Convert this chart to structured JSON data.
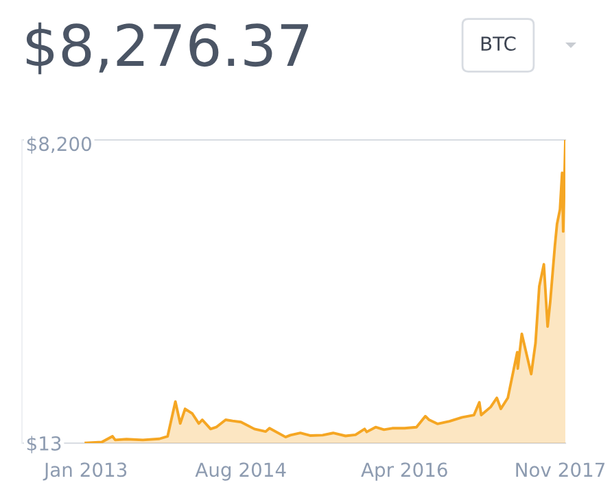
{
  "chart_data": {
    "type": "area",
    "title": "$8,276.37",
    "annotations": [
      "BTC"
    ],
    "x": [
      "2013-01-01",
      "2013-03-01",
      "2013-04-10",
      "2013-04-20",
      "2013-06-01",
      "2013-08-01",
      "2013-10-01",
      "2013-11-01",
      "2013-11-30",
      "2013-12-18",
      "2014-01-05",
      "2014-02-01",
      "2014-02-25",
      "2014-03-10",
      "2014-04-10",
      "2014-05-01",
      "2014-06-05",
      "2014-07-01",
      "2014-08-01",
      "2014-09-20",
      "2014-11-01",
      "2014-11-15",
      "2015-01-14",
      "2015-02-01",
      "2015-03-10",
      "2015-04-15",
      "2015-06-01",
      "2015-07-10",
      "2015-08-25",
      "2015-10-01",
      "2015-11-04",
      "2015-11-12",
      "2015-12-15",
      "2016-01-15",
      "2016-02-15",
      "2016-04-01",
      "2016-05-15",
      "2016-06-17",
      "2016-07-01",
      "2016-08-02",
      "2016-09-15",
      "2016-11-01",
      "2016-12-15",
      "2017-01-04",
      "2017-01-11",
      "2017-02-15",
      "2017-03-10",
      "2017-03-25",
      "2017-04-20",
      "2017-05-25",
      "2017-05-27",
      "2017-06-11",
      "2017-07-16",
      "2017-08-01",
      "2017-08-15",
      "2017-09-01",
      "2017-09-15",
      "2017-09-25",
      "2017-10-12",
      "2017-10-20",
      "2017-10-31",
      "2017-11-08",
      "2017-11-12",
      "2017-11-20"
    ],
    "series": [
      {
        "color": "#f5a623",
        "values": [
          20,
          40,
          200,
          100,
          120,
          100,
          130,
          200,
          1150,
          550,
          950,
          820,
          550,
          650,
          400,
          450,
          650,
          620,
          590,
          400,
          330,
          420,
          180,
          230,
          290,
          220,
          230,
          290,
          210,
          240,
          400,
          320,
          450,
          380,
          420,
          420,
          450,
          750,
          650,
          540,
          610,
          720,
          780,
          1130,
          780,
          1000,
          1250,
          950,
          1250,
          2500,
          2050,
          3000,
          1900,
          2750,
          4300,
          4900,
          3200,
          3900,
          5400,
          6000,
          6400,
          7400,
          5800,
          8280
        ]
      }
    ],
    "xlim": [
      "2012-05-08",
      "2017-11-20"
    ],
    "xticks": [
      {
        "value": "2013-01-01",
        "label": "Jan 2013"
      },
      {
        "value": "2014-08-01",
        "label": "Aug 2014"
      },
      {
        "value": "2016-04-01",
        "label": "Apr 2016"
      },
      {
        "value": "2017-11-01",
        "label": "Nov 2017"
      }
    ],
    "ylim": [
      13,
      8300
    ],
    "yticks": [
      {
        "value": 13,
        "label": "$13"
      },
      {
        "value": 8200,
        "label": "$8,200"
      }
    ],
    "grid": false,
    "legend": false
  }
}
